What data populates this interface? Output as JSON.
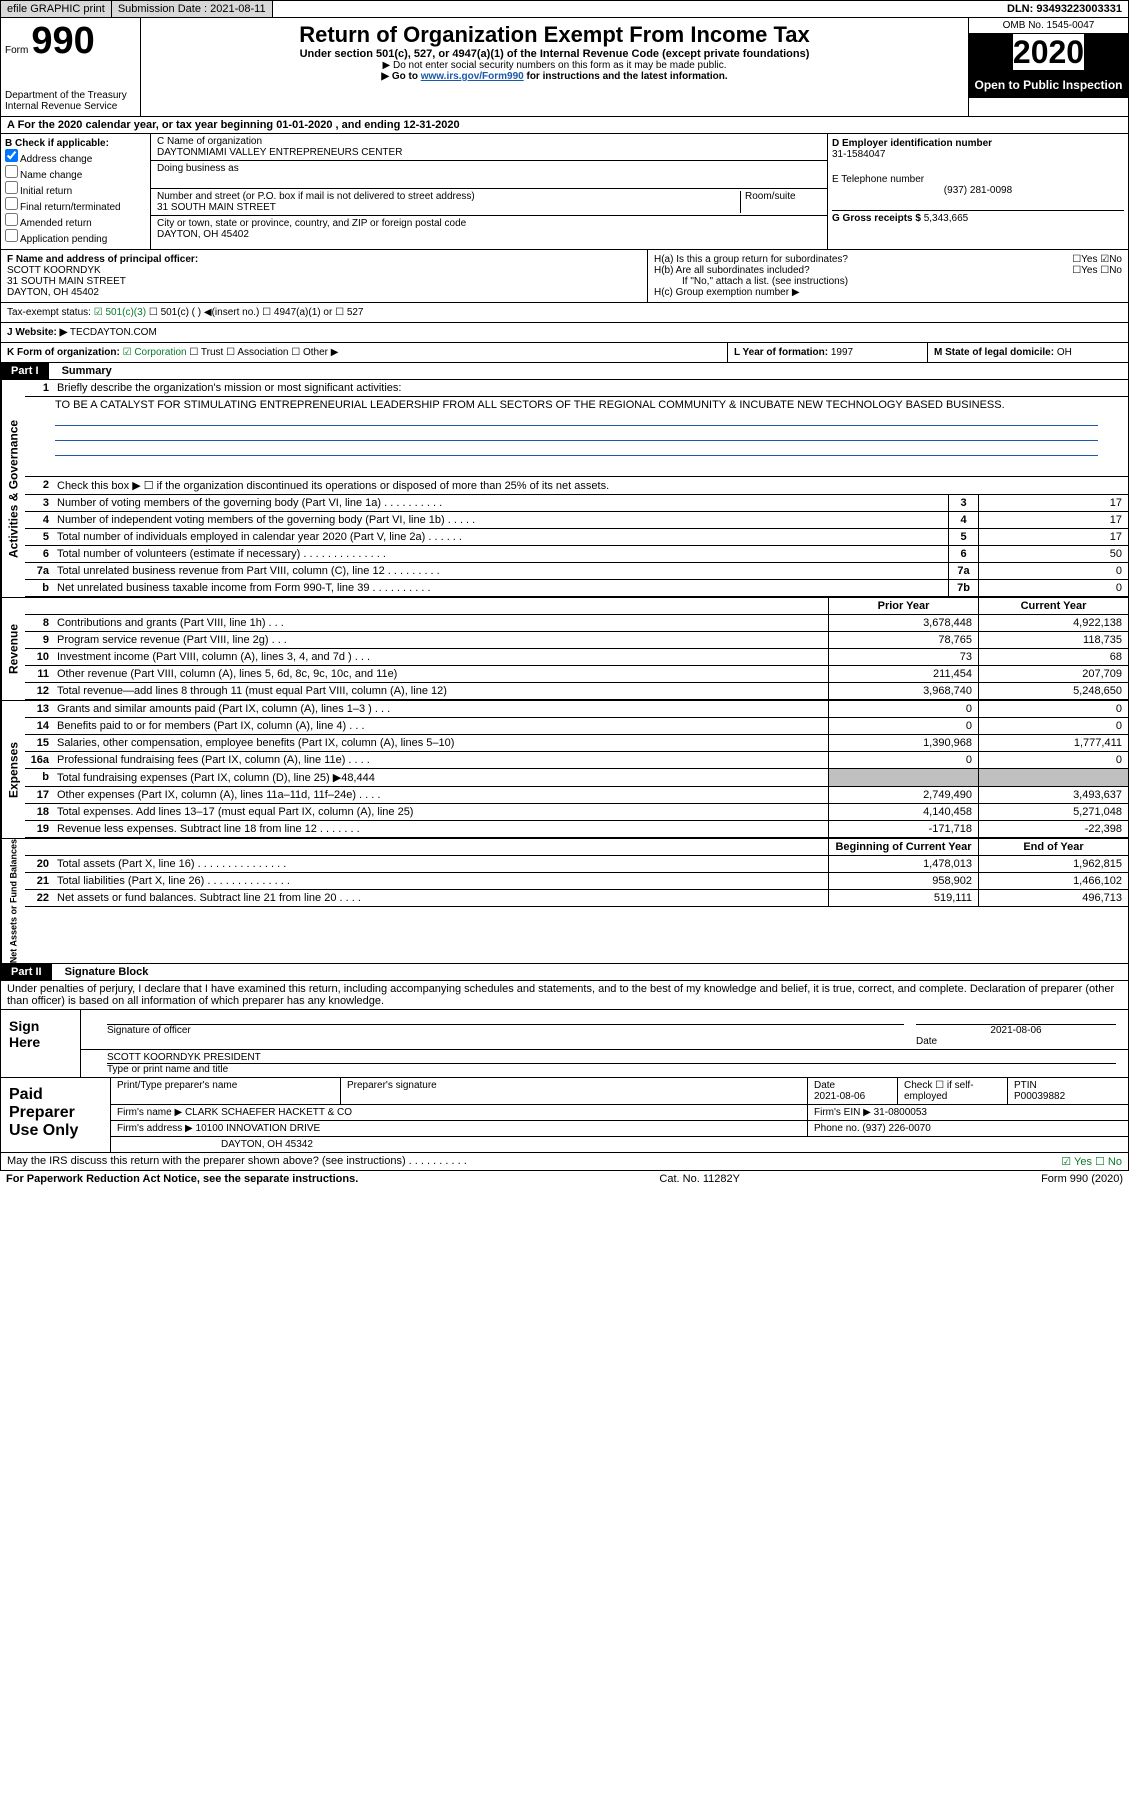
{
  "topbar": {
    "efile": "efile GRAPHIC print",
    "submit_label": "Submission Date : 2021-08-11",
    "dln": "DLN: 93493223003331"
  },
  "header": {
    "form_prefix": "Form",
    "form_number": "990",
    "dept": "Department of the Treasury\nInternal Revenue Service",
    "title": "Return of Organization Exempt From Income Tax",
    "subtitle": "Under section 501(c), 527, or 4947(a)(1) of the Internal Revenue Code (except private foundations)",
    "note1": "▶ Do not enter social security numbers on this form as it may be made public.",
    "note2_pre": "▶ Go to ",
    "note2_link": "www.irs.gov/Form990",
    "note2_post": " for instructions and the latest information.",
    "omb": "OMB No. 1545-0047",
    "year": "2020",
    "open": "Open to Public Inspection"
  },
  "periodA": "A For the 2020 calendar year, or tax year beginning 01-01-2020    , and ending 12-31-2020",
  "blockB": {
    "title": "B Check if applicable:",
    "items": [
      "Address change",
      "Name change",
      "Initial return",
      "Final return/terminated",
      "Amended return",
      "Application pending"
    ],
    "checked_idx": 0
  },
  "blockC": {
    "name_label": "C Name of organization",
    "org_name": "DAYTONMIAMI VALLEY ENTREPRENEURS CENTER",
    "dba_label": "Doing business as",
    "dba": "",
    "addr_label": "Number and street (or P.O. box if mail is not delivered to street address)",
    "addr": "31 SOUTH MAIN STREET",
    "room_label": "Room/suite",
    "city_label": "City or town, state or province, country, and ZIP or foreign postal code",
    "city": "DAYTON, OH  45402"
  },
  "blockD": {
    "label": "D Employer identification number",
    "value": "31-1584047"
  },
  "blockE": {
    "label": "E Telephone number",
    "value": "(937) 281-0098"
  },
  "blockG": {
    "label": "G Gross receipts $",
    "value": "5,343,665"
  },
  "blockF": {
    "label": "F  Name and address of principal officer:",
    "name": "SCOTT KOORNDYK",
    "addr1": "31 SOUTH MAIN STREET",
    "addr2": "DAYTON, OH  45402"
  },
  "blockH": {
    "ha": "H(a)  Is this a group return for subordinates?",
    "hb": "H(b)  Are all subordinates included?",
    "hb_note": "If \"No,\" attach a list. (see instructions)",
    "hc": "H(c)  Group exemption number ▶"
  },
  "taxstatus": {
    "label": "Tax-exempt status:",
    "opts": [
      "501(c)(3)",
      "501(c) (  ) ◀(insert no.)",
      "4947(a)(1) or",
      "527"
    ]
  },
  "blockJ": {
    "label": "J Website: ▶",
    "value": "TECDAYTON.COM"
  },
  "blockK": {
    "label": "K Form of organization:",
    "opts": [
      "Corporation",
      "Trust",
      "Association",
      "Other ▶"
    ]
  },
  "blockL": {
    "label": "L Year of formation:",
    "value": "1997"
  },
  "blockM": {
    "label": "M State of legal domicile:",
    "value": "OH"
  },
  "part1": {
    "tag": "Part I",
    "title": "Summary"
  },
  "summary": {
    "sec1_label": "Activities & Governance",
    "line1": "Briefly describe the organization's mission or most significant activities:",
    "mission": "TO BE A CATALYST FOR STIMULATING ENTREPRENEURIAL LEADERSHIP FROM ALL SECTORS OF THE REGIONAL COMMUNITY & INCUBATE NEW TECHNOLOGY BASED BUSINESS.",
    "line2": "Check this box ▶ ☐  if the organization discontinued its operations or disposed of more than 25% of its net assets.",
    "rows_a": [
      {
        "n": "3",
        "t": "Number of voting members of the governing body (Part VI, line 1a)  .   .   .   .   .   .   .   .   .   .",
        "b": "3",
        "v": "17"
      },
      {
        "n": "4",
        "t": "Number of independent voting members of the governing body (Part VI, line 1b)  .   .   .   .   .",
        "b": "4",
        "v": "17"
      },
      {
        "n": "5",
        "t": "Total number of individuals employed in calendar year 2020 (Part V, line 2a)  .   .   .   .   .   .",
        "b": "5",
        "v": "17"
      },
      {
        "n": "6",
        "t": "Total number of volunteers (estimate if necessary)    .   .   .   .   .   .   .   .   .   .   .   .   .   .",
        "b": "6",
        "v": "50"
      },
      {
        "n": "7a",
        "t": "Total unrelated business revenue from Part VIII, column (C), line 12   .   .   .   .   .   .   .   .   .",
        "b": "7a",
        "v": "0"
      },
      {
        "n": "b",
        "t": "Net unrelated business taxable income from Form 990-T, line 39    .   .   .   .   .   .   .   .   .   .",
        "b": "7b",
        "v": "0"
      }
    ],
    "hdr_prior": "Prior Year",
    "hdr_curr": "Current Year",
    "sec2_label": "Revenue",
    "rows_r": [
      {
        "n": "8",
        "t": "Contributions and grants (Part VIII, line 1h)   .   .   .",
        "p": "3,678,448",
        "c": "4,922,138"
      },
      {
        "n": "9",
        "t": "Program service revenue (Part VIII, line 2g)   .   .   .",
        "p": "78,765",
        "c": "118,735"
      },
      {
        "n": "10",
        "t": "Investment income (Part VIII, column (A), lines 3, 4, and 7d )   .   .   .",
        "p": "73",
        "c": "68"
      },
      {
        "n": "11",
        "t": "Other revenue (Part VIII, column (A), lines 5, 6d, 8c, 9c, 10c, and 11e)",
        "p": "211,454",
        "c": "207,709"
      },
      {
        "n": "12",
        "t": "Total revenue—add lines 8 through 11 (must equal Part VIII, column (A), line 12)",
        "p": "3,968,740",
        "c": "5,248,650"
      }
    ],
    "sec3_label": "Expenses",
    "rows_e": [
      {
        "n": "13",
        "t": "Grants and similar amounts paid (Part IX, column (A), lines 1–3 )  .   .   .",
        "p": "0",
        "c": "0"
      },
      {
        "n": "14",
        "t": "Benefits paid to or for members (Part IX, column (A), line 4)   .   .   .",
        "p": "0",
        "c": "0"
      },
      {
        "n": "15",
        "t": "Salaries, other compensation, employee benefits (Part IX, column (A), lines 5–10)",
        "p": "1,390,968",
        "c": "1,777,411"
      },
      {
        "n": "16a",
        "t": "Professional fundraising fees (Part IX, column (A), line 11e)   .   .   .   .",
        "p": "0",
        "c": "0"
      },
      {
        "n": "b",
        "t": "Total fundraising expenses (Part IX, column (D), line 25) ▶48,444",
        "p": "",
        "c": "",
        "grey": true
      },
      {
        "n": "17",
        "t": "Other expenses (Part IX, column (A), lines 11a–11d, 11f–24e)   .   .   .   .",
        "p": "2,749,490",
        "c": "3,493,637"
      },
      {
        "n": "18",
        "t": "Total expenses. Add lines 13–17 (must equal Part IX, column (A), line 25)",
        "p": "4,140,458",
        "c": "5,271,048"
      },
      {
        "n": "19",
        "t": "Revenue less expenses. Subtract line 18 from line 12  .   .   .   .   .   .   .",
        "p": "-171,718",
        "c": "-22,398"
      }
    ],
    "hdr_begin": "Beginning of Current Year",
    "hdr_end": "End of Year",
    "sec4_label": "Net Assets or Fund Balances",
    "rows_n": [
      {
        "n": "20",
        "t": "Total assets (Part X, line 16)  .   .   .   .   .   .   .   .   .   .   .   .   .   .   .",
        "p": "1,478,013",
        "c": "1,962,815"
      },
      {
        "n": "21",
        "t": "Total liabilities (Part X, line 26)  .   .   .   .   .   .   .   .   .   .   .   .   .   .",
        "p": "958,902",
        "c": "1,466,102"
      },
      {
        "n": "22",
        "t": "Net assets or fund balances. Subtract line 21 from line 20   .   .   .   .",
        "p": "519,111",
        "c": "496,713"
      }
    ]
  },
  "part2": {
    "tag": "Part II",
    "title": "Signature Block"
  },
  "perjury": "Under penalties of perjury, I declare that I have examined this return, including accompanying schedules and statements, and to the best of my knowledge and belief, it is true, correct, and complete. Declaration of preparer (other than officer) is based on all information of which preparer has any knowledge.",
  "sign": {
    "label": "Sign Here",
    "sig_label": "Signature of officer",
    "date_label": "Date",
    "date": "2021-08-06",
    "name": "SCOTT KOORNDYK PRESIDENT",
    "name_label": "Type or print name and title"
  },
  "paid": {
    "label": "Paid Preparer Use Only",
    "h1": "Print/Type preparer's name",
    "h2": "Preparer's signature",
    "h3": "Date",
    "h3v": "2021-08-06",
    "h4": "Check ☐ if self-employed",
    "h5": "PTIN",
    "h5v": "P00039882",
    "firm_label": "Firm's name     ▶",
    "firm": "CLARK SCHAEFER HACKETT & CO",
    "ein_label": "Firm's EIN ▶",
    "ein": "31-0800053",
    "addr_label": "Firm's address ▶",
    "addr1": "10100 INNOVATION DRIVE",
    "addr2": "DAYTON, OH  45342",
    "phone_label": "Phone no.",
    "phone": "(937) 226-0070"
  },
  "discuss": "May the IRS discuss this return with the preparer shown above? (see instructions)   .   .   .   .   .   .   .   .   .   .",
  "footer": {
    "left": "For Paperwork Reduction Act Notice, see the separate instructions.",
    "mid": "Cat. No. 11282Y",
    "right": "Form 990 (2020)"
  }
}
